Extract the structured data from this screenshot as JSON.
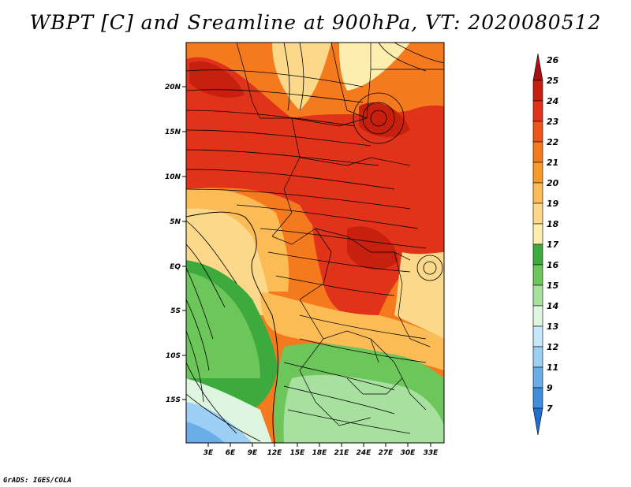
{
  "title": "WBPT [C] and Sreamline at 900hPa, VT: 2020080512",
  "credit": "GrADS: IGES/COLA",
  "lat_labels": [
    "20N",
    "15N",
    "10N",
    "5N",
    "EQ",
    "5S",
    "10S",
    "15S"
  ],
  "lon_labels": [
    "3E",
    "6E",
    "9E",
    "12E",
    "15E",
    "18E",
    "21E",
    "24E",
    "27E",
    "30E",
    "33E"
  ],
  "colorbar": {
    "labels": [
      "26",
      "25",
      "24",
      "23",
      "22",
      "21",
      "20",
      "19",
      "18",
      "17",
      "16",
      "15",
      "14",
      "13",
      "12",
      "11",
      "9",
      "7"
    ],
    "colors": [
      "#a50f15",
      "#c8200e",
      "#e0331a",
      "#f0541c",
      "#f57a1e",
      "#f89a2a",
      "#fbbb55",
      "#fcd88a",
      "#fdeeb0",
      "#3caa3c",
      "#6cc65a",
      "#a8e0a0",
      "#def5e0",
      "#c6e6fa",
      "#9ccff3",
      "#6aaee8",
      "#3f8ede",
      "#1f6fd0"
    ]
  },
  "fields": {
    "green_fill": "#7ccf6a",
    "light_green_fill": "#b7e6a7",
    "blue_fill": "#9ccff3",
    "red_fill": "#e0331a",
    "orange_fill": "#f57a1e",
    "yellow_fill": "#fcd88a"
  }
}
